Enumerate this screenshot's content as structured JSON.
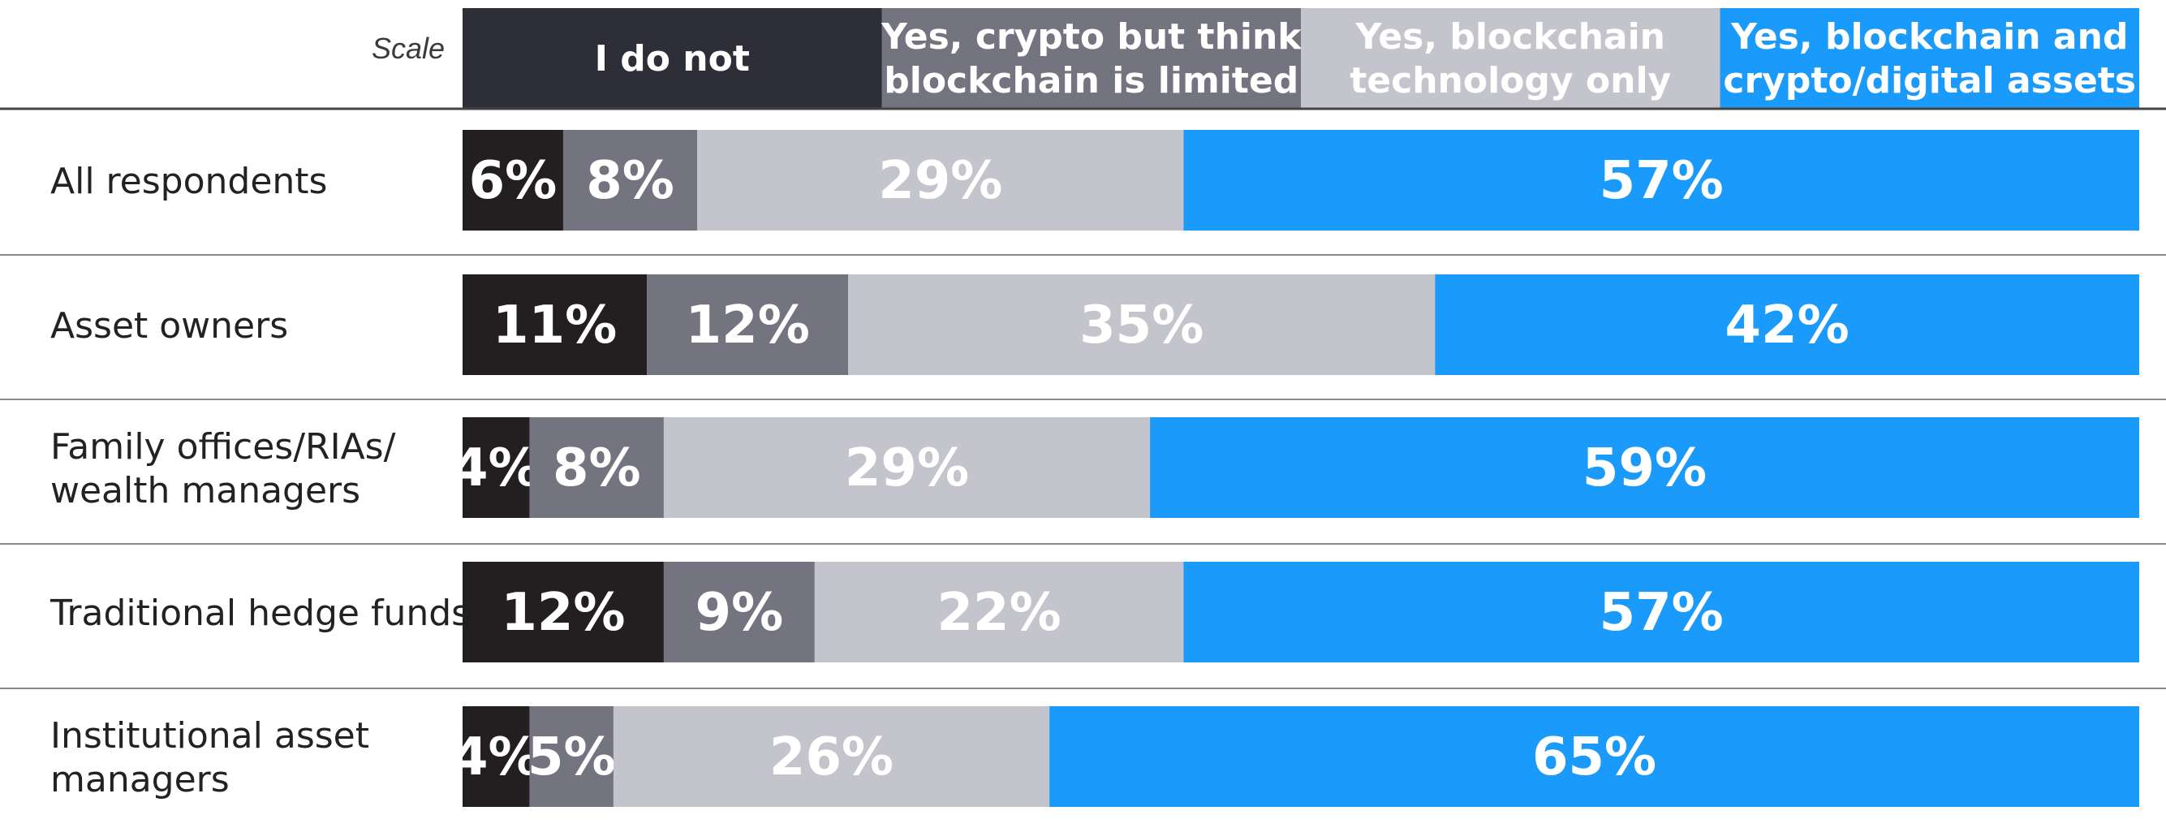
{
  "chart_data": {
    "type": "bar",
    "orientation": "horizontal",
    "stacked": true,
    "value_format": "percent",
    "legend_title": "Scale",
    "legend_placement": "top",
    "categories": [
      "All respondents",
      "Asset owners",
      "Family offices/RIAs/ wealth managers",
      "Traditional hedge funds",
      "Institutional asset managers"
    ],
    "category_lines": [
      [
        "All respondents"
      ],
      [
        "Asset owners"
      ],
      [
        "Family offices/RIAs/",
        "wealth managers"
      ],
      [
        "Traditional hedge funds"
      ],
      [
        "Institutional asset",
        "managers"
      ]
    ],
    "series": [
      {
        "name": "I do not",
        "name_lines": [
          "I do not"
        ],
        "color": "#231f20",
        "values": [
          6,
          11,
          4,
          12,
          4
        ],
        "labels": [
          "6%",
          "11%",
          "4%",
          "12%",
          "4%"
        ]
      },
      {
        "name": "Yes, crypto but think blockchain is limited",
        "name_lines": [
          "Yes, crypto but think",
          "blockchain is limited"
        ],
        "color": "#747480",
        "values": [
          8,
          12,
          8,
          9,
          5
        ],
        "labels": [
          "8%",
          "12%",
          "8%",
          "9%",
          "5%"
        ]
      },
      {
        "name": "Yes, blockchain technology only",
        "name_lines": [
          "Yes, blockchain",
          "technology only"
        ],
        "color": "#c4c4cd",
        "values": [
          29,
          35,
          29,
          22,
          26
        ],
        "labels": [
          "29%",
          "35%",
          "29%",
          "22%",
          "26%"
        ]
      },
      {
        "name": "Yes, blockchain and crypto/digital assets",
        "name_lines": [
          "Yes, blockchain and",
          "crypto/digital assets"
        ],
        "color": "#1a9afa",
        "values": [
          57,
          42,
          59,
          57,
          65
        ],
        "labels": [
          "57%",
          "42%",
          "59%",
          "57%",
          "65%"
        ]
      }
    ],
    "header_color": "#2e2e38",
    "grid": false
  }
}
